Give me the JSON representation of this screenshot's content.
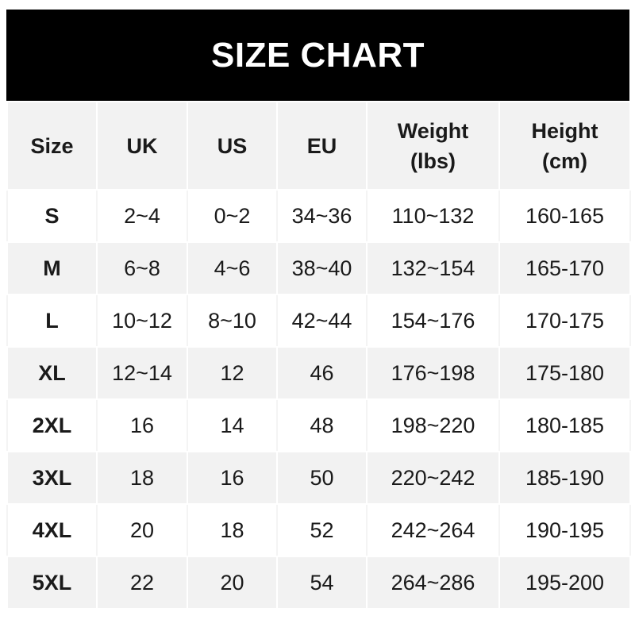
{
  "title": "SIZE CHART",
  "columns": [
    {
      "line1": "Size",
      "line2": ""
    },
    {
      "line1": "UK",
      "line2": ""
    },
    {
      "line1": "US",
      "line2": ""
    },
    {
      "line1": "EU",
      "line2": ""
    },
    {
      "line1": "Weight",
      "line2": "(lbs)"
    },
    {
      "line1": "Height",
      "line2": "(cm)"
    }
  ],
  "rows": [
    [
      "S",
      "2~4",
      "0~2",
      "34~36",
      "110~132",
      "160-165"
    ],
    [
      "M",
      "6~8",
      "4~6",
      "38~40",
      "132~154",
      "165-170"
    ],
    [
      "L",
      "10~12",
      "8~10",
      "42~44",
      "154~176",
      "170-175"
    ],
    [
      "XL",
      "12~14",
      "12",
      "46",
      "176~198",
      "175-180"
    ],
    [
      "2XL",
      "16",
      "14",
      "48",
      "198~220",
      "180-185"
    ],
    [
      "3XL",
      "18",
      "16",
      "50",
      "220~242",
      "185-190"
    ],
    [
      "4XL",
      "20",
      "18",
      "52",
      "242~264",
      "190-195"
    ],
    [
      "5XL",
      "22",
      "20",
      "54",
      "264~286",
      "195-200"
    ]
  ],
  "colors": {
    "title_bg": "#000000",
    "header_bg": "#f2f2f2",
    "stripe": "#f2f2f2"
  }
}
